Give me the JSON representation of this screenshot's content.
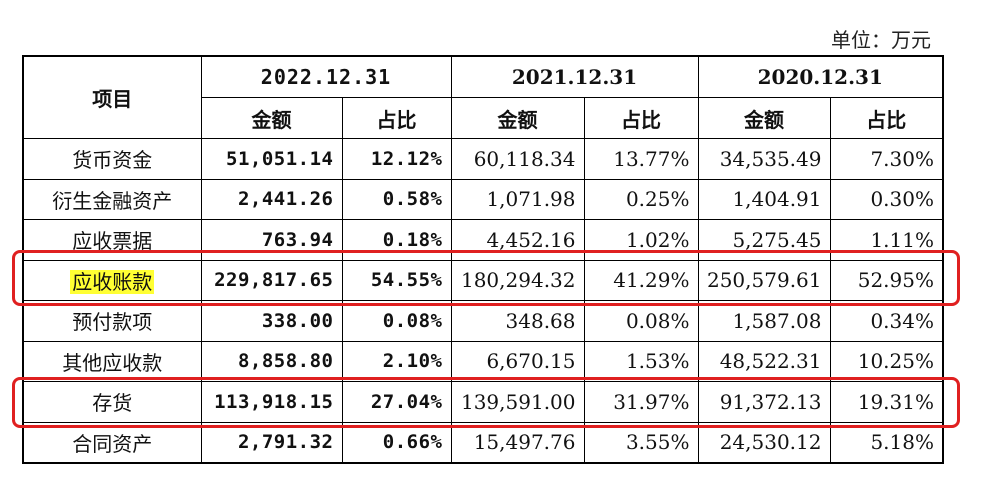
{
  "unit": "单位：万元",
  "table": {
    "header": {
      "item": "项目",
      "periods": [
        "2022.12.31",
        "2021.12.31",
        "2020.12.31"
      ],
      "subheaders": [
        "金额",
        "占比",
        "金额",
        "占比",
        "金额",
        "占比"
      ]
    },
    "rows": [
      [
        "货币资金",
        "51,051.14",
        "12.12%",
        "60,118.34",
        "13.77%",
        "34,535.49",
        "7.30%"
      ],
      [
        "衍生金融资产",
        "2,441.26",
        "0.58%",
        "1,071.98",
        "0.25%",
        "1,404.91",
        "0.30%"
      ],
      [
        "应收票据",
        "763.94",
        "0.18%",
        "4,452.16",
        "1.02%",
        "5,275.45",
        "1.11%"
      ],
      [
        "应收账款",
        "229,817.65",
        "54.55%",
        "180,294.32",
        "41.29%",
        "250,579.61",
        "52.95%"
      ],
      [
        "预付款项",
        "338.00",
        "0.08%",
        "348.68",
        "0.08%",
        "1,587.08",
        "0.34%"
      ],
      [
        "其他应收款",
        "8,858.80",
        "2.10%",
        "6,670.15",
        "1.53%",
        "48,522.31",
        "10.25%"
      ],
      [
        "存货",
        "113,918.15",
        "27.04%",
        "139,591.00",
        "31.97%",
        "91,372.13",
        "19.31%"
      ],
      [
        "合同资产",
        "2,791.32",
        "0.66%",
        "15,497.76",
        "3.55%",
        "24,530.12",
        "5.18%"
      ]
    ]
  }
}
